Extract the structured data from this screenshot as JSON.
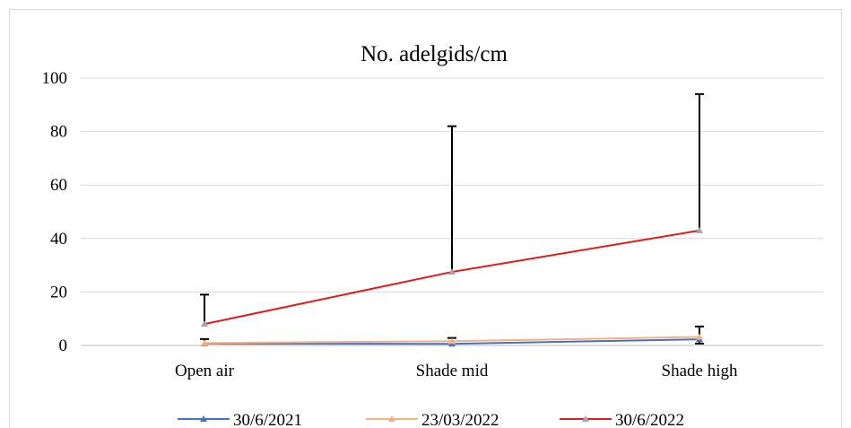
{
  "chart_data": {
    "type": "line",
    "title": "No. adelgids/cm",
    "xlabel": "",
    "ylabel": "",
    "categories": [
      "Open air",
      "Shade mid",
      "Shade high"
    ],
    "ylim": [
      0,
      100
    ],
    "yticks": [
      0,
      20,
      40,
      60,
      80,
      100
    ],
    "grid": true,
    "legend": "bottom",
    "series": [
      {
        "name": "30/6/2021",
        "values": [
          0.7,
          0.6,
          2.3
        ],
        "error_upper": [
          1.7,
          2.2,
          4.8
        ],
        "error_lower": [
          0,
          0,
          1.6
        ],
        "color": "#4472C4",
        "marker": "triangle"
      },
      {
        "name": "23/03/2022",
        "values": [
          0.9,
          1.6,
          3.2
        ],
        "error_upper": [
          0,
          0,
          0
        ],
        "error_lower": [
          0,
          0,
          0
        ],
        "color": "#F4B183",
        "marker": "triangle"
      },
      {
        "name": "30/6/2022",
        "values": [
          8,
          27.5,
          43
        ],
        "error_upper": [
          11,
          54.5,
          51
        ],
        "error_lower": [
          0,
          0,
          0
        ],
        "color": "#E31A1C",
        "marker": "triangle"
      }
    ]
  }
}
